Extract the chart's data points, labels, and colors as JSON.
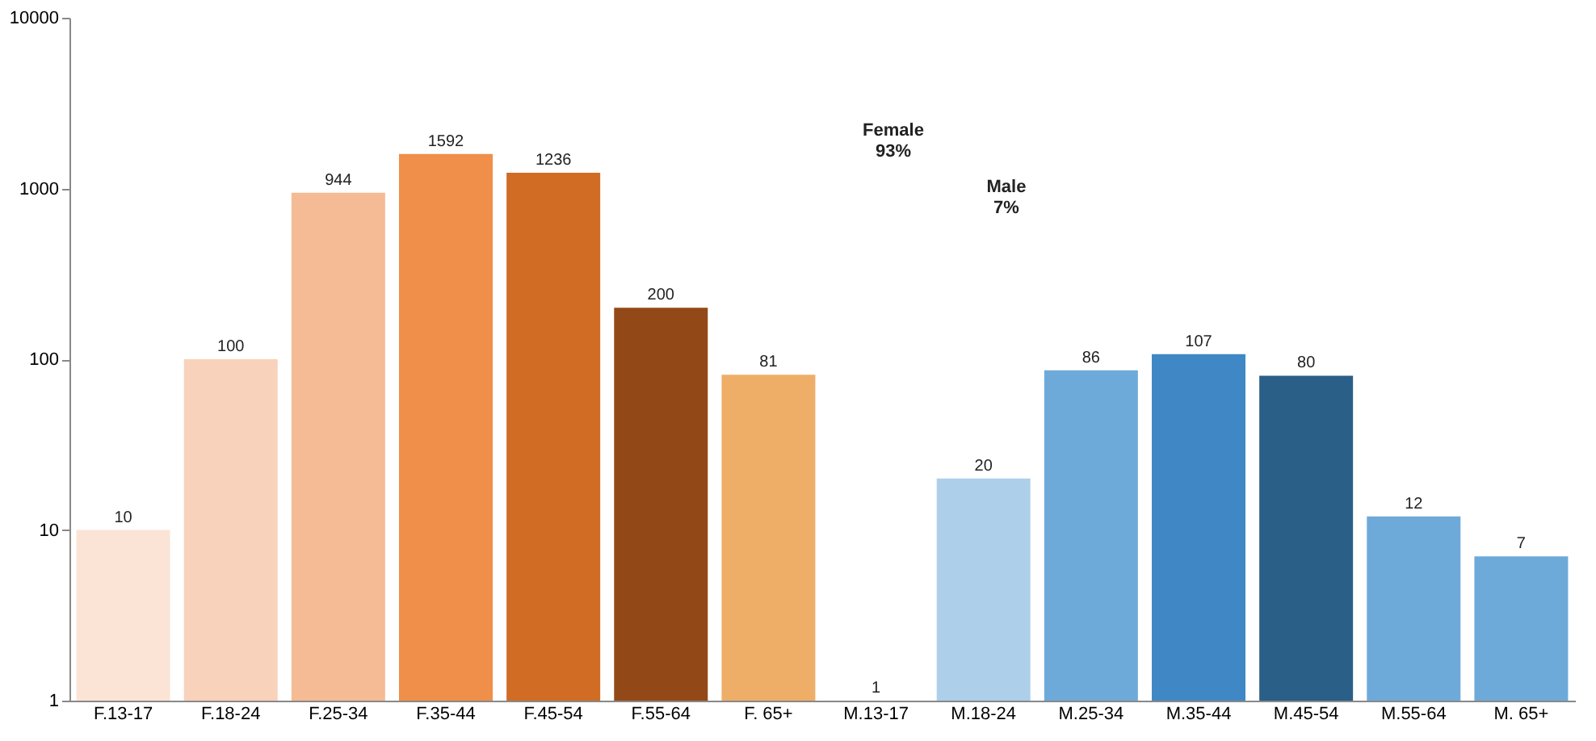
{
  "chart_data": {
    "type": "bar",
    "categories": [
      "F.13-17",
      "F.18-24",
      "F.25-34",
      "F.35-44",
      "F.45-54",
      "F.55-64",
      "F. 65+",
      "M.13-17",
      "M.18-24",
      "M.25-34",
      "M.35-44",
      "M.45-54",
      "M.55-64",
      "M. 65+"
    ],
    "values": [
      10,
      100,
      944,
      1592,
      1236,
      200,
      81,
      1,
      20,
      86,
      107,
      80,
      12,
      7
    ],
    "colors": [
      "#fbe4d6",
      "#f8d2bb",
      "#f5bb94",
      "#ef8f4a",
      "#d06c24",
      "#934817",
      "#eeae68",
      "#6eaad9",
      "#aecfea",
      "#6eaad9",
      "#3f88c5",
      "#2a5f87",
      "#6eaad9",
      "#6eaad9"
    ],
    "log": true,
    "ylim": [
      1,
      10000
    ],
    "yticks": [
      1,
      10,
      100,
      1000,
      10000
    ],
    "data_labels": true,
    "grid": false,
    "annotations": [
      "Female 93%",
      "Male 7%"
    ]
  }
}
